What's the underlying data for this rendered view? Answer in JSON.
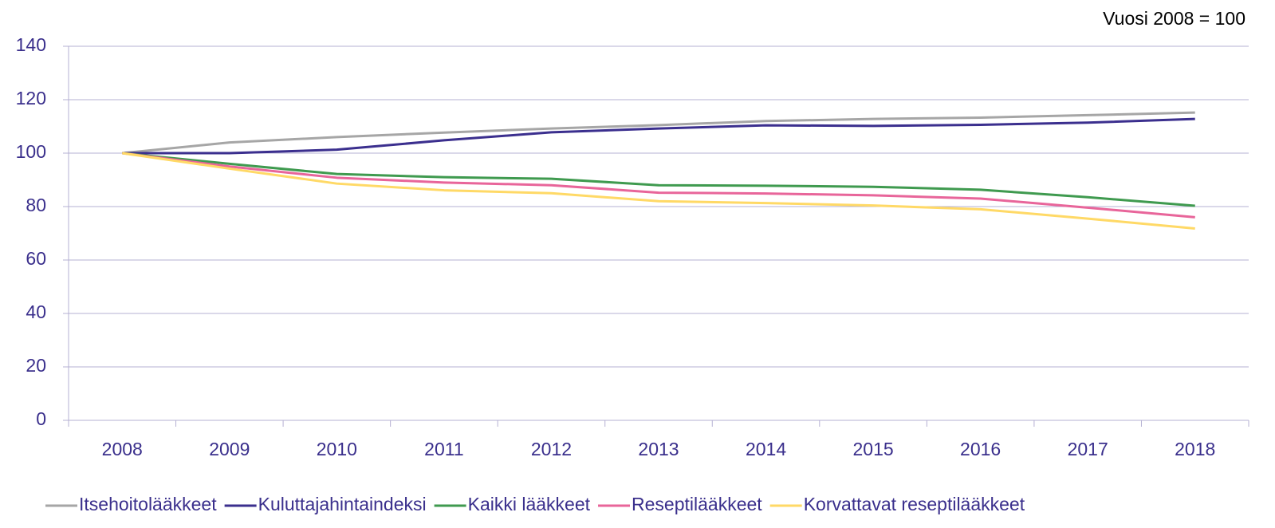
{
  "chart_data": {
    "type": "line",
    "annotation": "Vuosi 2008 = 100",
    "categories": [
      "2008",
      "2009",
      "2010",
      "2011",
      "2012",
      "2013",
      "2014",
      "2015",
      "2016",
      "2017",
      "2018"
    ],
    "series": [
      {
        "name": "Itsehoitolääkkeet",
        "color": "#a6a6a6",
        "values": [
          100,
          104,
          106,
          107.7,
          109.2,
          110.5,
          112,
          112.8,
          113.3,
          114.2,
          115.2
        ]
      },
      {
        "name": "Kuluttajahintaindeksi",
        "color": "#3b2f8e",
        "values": [
          100,
          100,
          101.3,
          104.8,
          107.8,
          109.2,
          110.4,
          110.2,
          110.6,
          111.4,
          112.8
        ]
      },
      {
        "name": "Kaikki lääkkeet",
        "color": "#3f9a4f",
        "values": [
          100,
          96,
          92.2,
          91,
          90.4,
          88,
          87.8,
          87.4,
          86.3,
          83.5,
          80.3
        ]
      },
      {
        "name": "Reseptilääkkeet",
        "color": "#e8659a",
        "values": [
          100,
          95,
          90.8,
          89,
          88,
          85.2,
          84.9,
          84.2,
          83,
          79.6,
          76
        ]
      },
      {
        "name": "Korvattavat reseptilääkkeet",
        "color": "#ffd966",
        "values": [
          100,
          94.2,
          88.6,
          86.1,
          85,
          82,
          81.3,
          80.4,
          79,
          75.5,
          71.8
        ]
      }
    ],
    "ylim": [
      0,
      140
    ],
    "yticks": [
      0,
      20,
      40,
      60,
      80,
      100,
      120,
      140
    ],
    "grid": true,
    "legend": "bottom"
  }
}
